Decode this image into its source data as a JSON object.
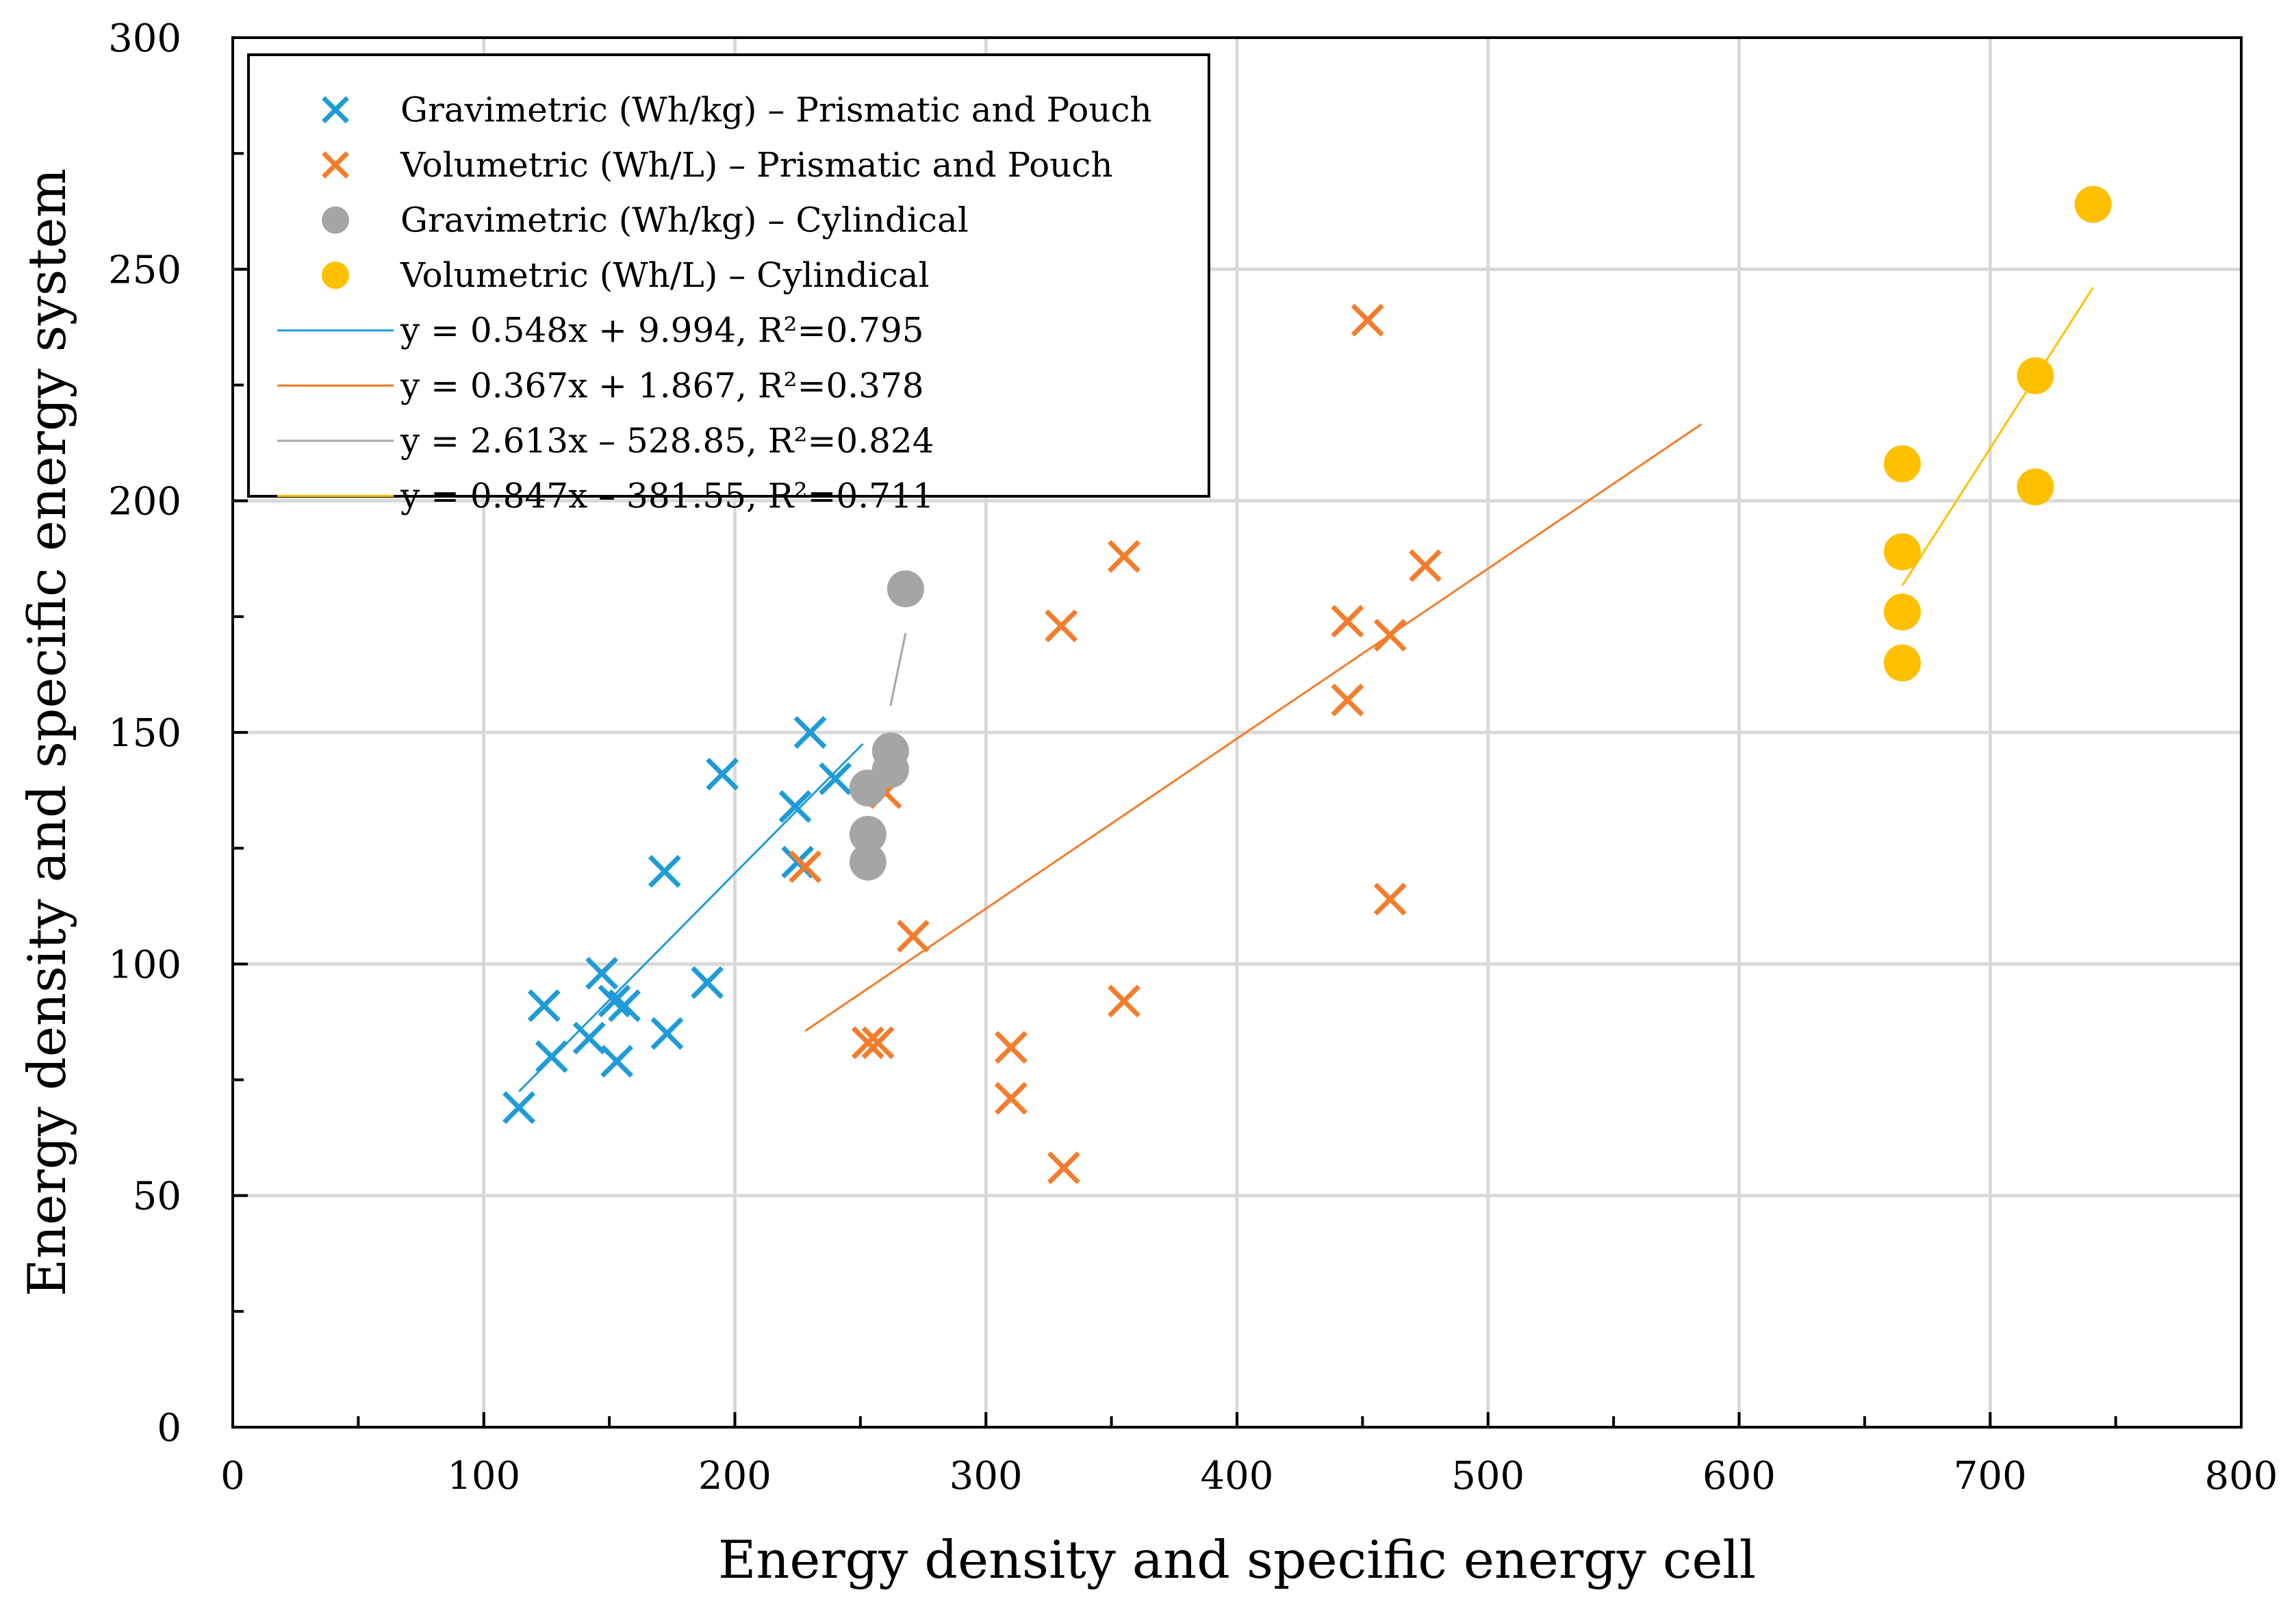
{
  "chart_data": {
    "type": "scatter",
    "title": "",
    "xlabel": "Energy density and specific energy cell",
    "ylabel": "Energy density and specific energy system",
    "xlim": [
      0,
      800
    ],
    "ylim": [
      0,
      300
    ],
    "x_ticks": [
      "0",
      "100",
      "200",
      "300",
      "400",
      "500",
      "600",
      "700",
      "800"
    ],
    "y_ticks": [
      "0",
      "50",
      "100",
      "150",
      "200",
      "250",
      "300"
    ],
    "grid": true,
    "legend_position": "top-left",
    "series": [
      {
        "name": "Gravimetric (Wh/kg) – Prismatic and Pouch",
        "marker": "x",
        "color": "#1f9bd7",
        "points": [
          [
            114,
            69
          ],
          [
            124,
            91
          ],
          [
            127,
            80
          ],
          [
            142,
            84
          ],
          [
            147,
            98
          ],
          [
            152,
            92
          ],
          [
            153,
            79
          ],
          [
            156,
            91
          ],
          [
            172,
            120
          ],
          [
            173,
            85
          ],
          [
            189,
            96
          ],
          [
            195,
            141
          ],
          [
            224,
            134
          ],
          [
            225,
            122
          ],
          [
            230,
            150
          ],
          [
            240,
            140
          ]
        ]
      },
      {
        "name": "Volumetric (Wh/L) – Prismatic and Pouch",
        "marker": "x",
        "color": "#f47c2a",
        "points": [
          [
            228,
            121
          ],
          [
            253,
            83
          ],
          [
            257,
            83
          ],
          [
            260,
            137
          ],
          [
            271,
            106
          ],
          [
            310,
            82
          ],
          [
            310,
            71
          ],
          [
            330,
            173
          ],
          [
            331,
            56
          ],
          [
            355,
            188
          ],
          [
            355,
            92
          ],
          [
            444,
            174
          ],
          [
            444,
            157
          ],
          [
            452,
            239
          ],
          [
            461,
            171
          ],
          [
            461,
            114
          ],
          [
            475,
            186
          ]
        ]
      },
      {
        "name": "Gravimetric (Wh/kg) – Cylindical",
        "marker": "circle",
        "color": "#a5a5a5",
        "points": [
          [
            253,
            122
          ],
          [
            253,
            128
          ],
          [
            253,
            138
          ],
          [
            262,
            142
          ],
          [
            262,
            146
          ],
          [
            268,
            181
          ]
        ]
      },
      {
        "name": "Volumetric (Wh/L) – Cylindical",
        "marker": "circle",
        "color": "#ffc000",
        "points": [
          [
            665,
            165
          ],
          [
            665,
            176
          ],
          [
            665,
            189
          ],
          [
            665,
            208
          ],
          [
            718,
            203
          ],
          [
            718,
            227
          ],
          [
            741,
            264
          ]
        ]
      }
    ],
    "trendlines": [
      {
        "name": "y = 0.548x + 9.994, R²=0.795",
        "color": "#1f9bd7",
        "slope": 0.548,
        "intercept": 9.994,
        "x_range": [
          114,
          251
        ]
      },
      {
        "name": "y = 0.367x + 1.867, R²=0.378",
        "color": "#f47c2a",
        "slope": 0.367,
        "intercept": 1.867,
        "x_range": [
          228,
          585
        ]
      },
      {
        "name": "y = 2.613x – 528.85, R²=0.824",
        "color": "#a5a5a5",
        "slope": 2.613,
        "intercept": -528.85,
        "x_range": [
          262,
          268
        ]
      },
      {
        "name": "y = 0.847x – 381.55, R²=0.711",
        "color": "#ffc000",
        "slope": 0.847,
        "intercept": -381.55,
        "x_range": [
          665,
          741
        ]
      }
    ]
  }
}
